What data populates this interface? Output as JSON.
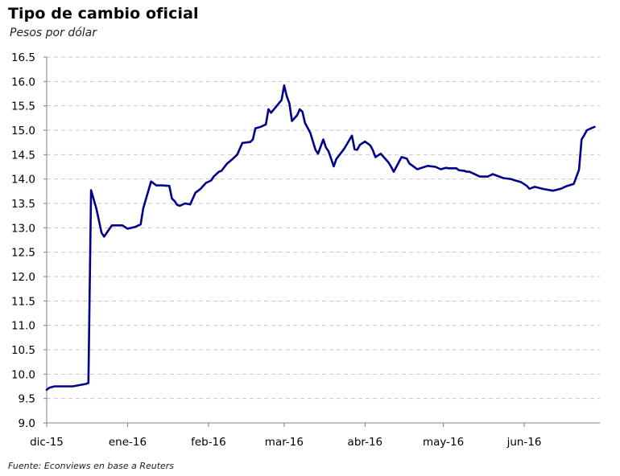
{
  "chart_data": {
    "type": "line",
    "title": "Tipo de cambio oficial",
    "subtitle": "Pesos por dólar",
    "source": "Fuente: Econviews en base a Reuters",
    "xlabel": "",
    "ylabel": "",
    "ylim": [
      9.0,
      16.5
    ],
    "xlim": [
      "2015-12-01",
      "2016-06-30"
    ],
    "yticks": [
      "9.0",
      "9.5",
      "10.0",
      "10.5",
      "11.0",
      "11.5",
      "12.0",
      "12.5",
      "13.0",
      "13.5",
      "14.0",
      "14.5",
      "15.0",
      "15.5",
      "16.0",
      "16.5"
    ],
    "xticks": [
      {
        "label": "dic-15",
        "date": "2015-12-01"
      },
      {
        "label": "ene-16",
        "date": "2016-01-01"
      },
      {
        "label": "feb-16",
        "date": "2016-02-01"
      },
      {
        "label": "mar-16",
        "date": "2016-03-01"
      },
      {
        "label": "abr-16",
        "date": "2016-04-01"
      },
      {
        "label": "may-16",
        "date": "2016-05-01"
      },
      {
        "label": "jun-16",
        "date": "2016-06-01"
      }
    ],
    "grid": true,
    "legend": "none",
    "series": [
      {
        "color": "#00008b",
        "x": [
          "2015-12-01",
          "2015-12-02",
          "2015-12-04",
          "2015-12-09",
          "2015-12-11",
          "2015-12-16",
          "2015-12-17",
          "2015-12-18",
          "2015-12-20",
          "2015-12-22",
          "2015-12-23",
          "2015-12-26",
          "2015-12-30",
          "2016-01-01",
          "2016-01-04",
          "2016-01-06",
          "2016-01-07",
          "2016-01-10",
          "2016-01-12",
          "2016-01-13",
          "2016-01-14",
          "2016-01-17",
          "2016-01-18",
          "2016-01-19",
          "2016-01-20",
          "2016-01-21",
          "2016-01-23",
          "2016-01-25",
          "2016-01-27",
          "2016-01-29",
          "2016-01-31",
          "2016-02-02",
          "2016-02-03",
          "2016-02-05",
          "2016-02-06",
          "2016-02-08",
          "2016-02-10",
          "2016-02-12",
          "2016-02-14",
          "2016-02-17",
          "2016-02-18",
          "2016-02-19",
          "2016-02-21",
          "2016-02-23",
          "2016-02-24",
          "2016-02-25",
          "2016-02-29",
          "2016-03-01",
          "2016-03-02",
          "2016-03-03",
          "2016-03-04",
          "2016-03-06",
          "2016-03-07",
          "2016-03-08",
          "2016-03-09",
          "2016-03-11",
          "2016-03-13",
          "2016-03-14",
          "2016-03-16",
          "2016-03-17",
          "2016-03-18",
          "2016-03-20",
          "2016-03-21",
          "2016-03-23",
          "2016-03-24",
          "2016-03-27",
          "2016-03-28",
          "2016-03-29",
          "2016-03-30",
          "2016-04-01",
          "2016-04-03",
          "2016-04-04",
          "2016-04-05",
          "2016-04-07",
          "2016-04-10",
          "2016-04-11",
          "2016-04-12",
          "2016-04-15",
          "2016-04-17",
          "2016-04-18",
          "2016-04-19",
          "2016-04-21",
          "2016-04-25",
          "2016-04-28",
          "2016-04-30",
          "2016-05-02",
          "2016-05-03",
          "2016-05-06",
          "2016-05-07",
          "2016-05-09",
          "2016-05-10",
          "2016-05-11",
          "2016-05-13",
          "2016-05-15",
          "2016-05-18",
          "2016-05-20",
          "2016-05-24",
          "2016-05-27",
          "2016-05-28",
          "2016-05-30",
          "2016-05-31",
          "2016-06-02",
          "2016-06-03",
          "2016-06-05",
          "2016-06-08",
          "2016-06-10",
          "2016-06-12",
          "2016-06-15",
          "2016-06-17",
          "2016-06-20",
          "2016-06-22",
          "2016-06-23",
          "2016-06-24",
          "2016-06-25",
          "2016-06-27",
          "2016-06-28"
        ],
        "values": [
          9.68,
          9.72,
          9.75,
          9.75,
          9.75,
          9.8,
          9.82,
          13.77,
          13.4,
          12.9,
          12.82,
          13.05,
          13.05,
          12.98,
          13.02,
          13.07,
          13.4,
          13.95,
          13.87,
          13.87,
          13.87,
          13.86,
          13.6,
          13.55,
          13.47,
          13.45,
          13.5,
          13.48,
          13.72,
          13.8,
          13.92,
          13.97,
          14.05,
          14.15,
          14.17,
          14.31,
          14.4,
          14.5,
          14.74,
          14.76,
          14.81,
          15.04,
          15.07,
          15.12,
          15.43,
          15.36,
          15.62,
          15.92,
          15.7,
          15.55,
          15.19,
          15.31,
          15.43,
          15.38,
          15.15,
          14.95,
          14.6,
          14.52,
          14.81,
          14.65,
          14.57,
          14.26,
          14.41,
          14.55,
          14.62,
          14.89,
          14.61,
          14.6,
          14.7,
          14.77,
          14.69,
          14.59,
          14.45,
          14.52,
          14.34,
          14.25,
          14.15,
          14.45,
          14.42,
          14.32,
          14.28,
          14.2,
          14.27,
          14.25,
          14.2,
          14.23,
          14.22,
          14.22,
          14.18,
          14.17,
          14.15,
          14.15,
          14.1,
          14.05,
          14.05,
          14.1,
          14.02,
          14.0,
          13.98,
          13.95,
          13.93,
          13.86,
          13.8,
          13.84,
          13.8,
          13.78,
          13.76,
          13.8,
          13.85,
          13.9,
          14.19,
          14.81,
          14.9,
          15.0,
          15.05,
          15.07
        ]
      }
    ]
  }
}
